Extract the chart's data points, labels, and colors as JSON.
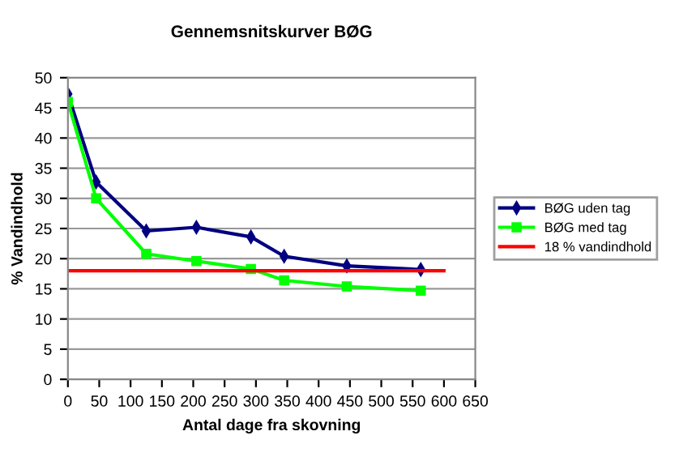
{
  "chart_data": {
    "type": "line",
    "title": "Gennemsnitskurver BØG",
    "xlabel": "Antal dage fra skovning",
    "ylabel": "% Vandindhold",
    "series": [
      {
        "name": "BØG uden tag",
        "color": "#000080",
        "marker": "diamond",
        "x": [
          0,
          45,
          125,
          205,
          292,
          345,
          445,
          563
        ],
        "values": [
          47.3,
          32.7,
          24.6,
          25.2,
          23.6,
          20.4,
          18.8,
          18.2
        ]
      },
      {
        "name": "BØG med tag",
        "color": "#00ff00",
        "marker": "square",
        "x": [
          0,
          45,
          125,
          205,
          292,
          345,
          445,
          563
        ],
        "values": [
          46,
          30,
          20.8,
          19.6,
          18.3,
          16.4,
          15.4,
          14.7
        ]
      },
      {
        "name": "18 % vandindhold",
        "color": "#ff0000",
        "marker": "none",
        "x": [
          0,
          600
        ],
        "values": [
          18,
          18
        ]
      }
    ],
    "xlim": [
      0,
      650
    ],
    "xticks": [
      0,
      50,
      100,
      150,
      200,
      250,
      300,
      350,
      400,
      450,
      500,
      550,
      600,
      650
    ],
    "ylim": [
      0,
      50
    ],
    "yticks": [
      0,
      5,
      10,
      15,
      20,
      25,
      30,
      35,
      40,
      45,
      50
    ],
    "grid": "y",
    "legend": "right",
    "line_style": "solid"
  }
}
